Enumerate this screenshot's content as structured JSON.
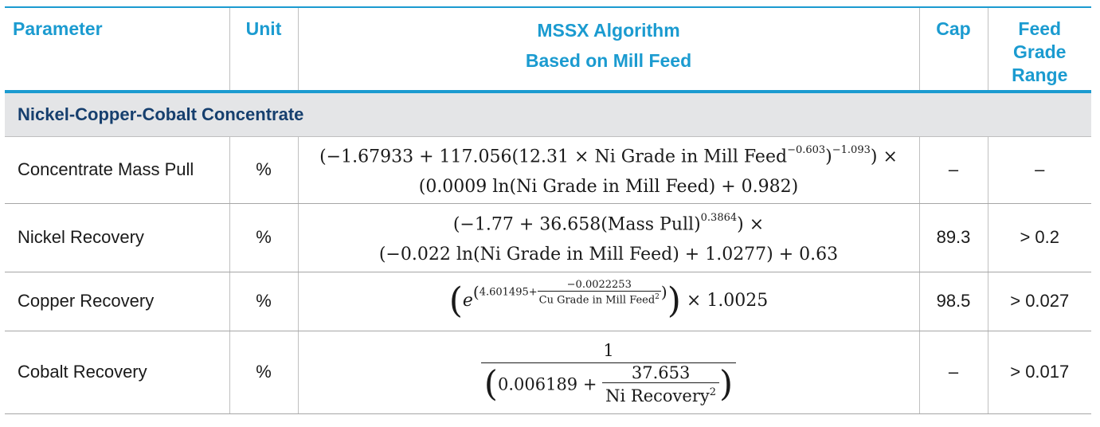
{
  "header": {
    "parameter": "Parameter",
    "unit": "Unit",
    "algorithm_line1": "MSSX Algorithm",
    "algorithm_line2": "Based on Mill Feed",
    "cap": "Cap",
    "range_line1": "Feed",
    "range_line2": "Grade",
    "range_line3": "Range"
  },
  "section": {
    "title": "Nickel-Copper-Cobalt Concentrate"
  },
  "rows": [
    {
      "parameter": "Concentrate Mass Pull",
      "unit": "%",
      "formula_line1_a": "(−1.67933 + 117.056(12.31 ×  Ni Grade in Mill Feed",
      "formula_line1_exp1": "−0.603",
      "formula_line1_b": ")",
      "formula_line1_exp2": "−1.093",
      "formula_line1_c": ") ×",
      "formula_line2": "(0.0009 ln(Ni Grade in Mill Feed) + 0.982)",
      "cap": "–",
      "range": "–"
    },
    {
      "parameter": "Nickel Recovery",
      "unit": "%",
      "formula_line1_a": "(−1.77 + 36.658(Mass Pull)",
      "formula_line1_exp": "0.3864",
      "formula_line1_b": ") ×",
      "formula_line2": "(−0.022 ln(Ni Grade in Mill Feed) + 1.0277) + 0.63",
      "cap": "89.3",
      "range": "> 0.2"
    },
    {
      "parameter": "Copper Recovery",
      "unit": "%",
      "formula_base": "e",
      "formula_exp_const": "4.601495+",
      "formula_exp_num": "−0.0022253",
      "formula_exp_den": "Cu Grade in Mill Feed",
      "formula_exp_den_pow": "2",
      "formula_tail": "× 1.0025",
      "cap": "98.5",
      "range": "> 0.027"
    },
    {
      "parameter": "Cobalt Recovery",
      "unit": "%",
      "formula_num": "1",
      "formula_den_const": "0.006189 +",
      "formula_den_num": "37.653",
      "formula_den_den": "Ni Recovery",
      "formula_den_den_pow": "2",
      "cap": "–",
      "range": "> 0.017"
    }
  ]
}
